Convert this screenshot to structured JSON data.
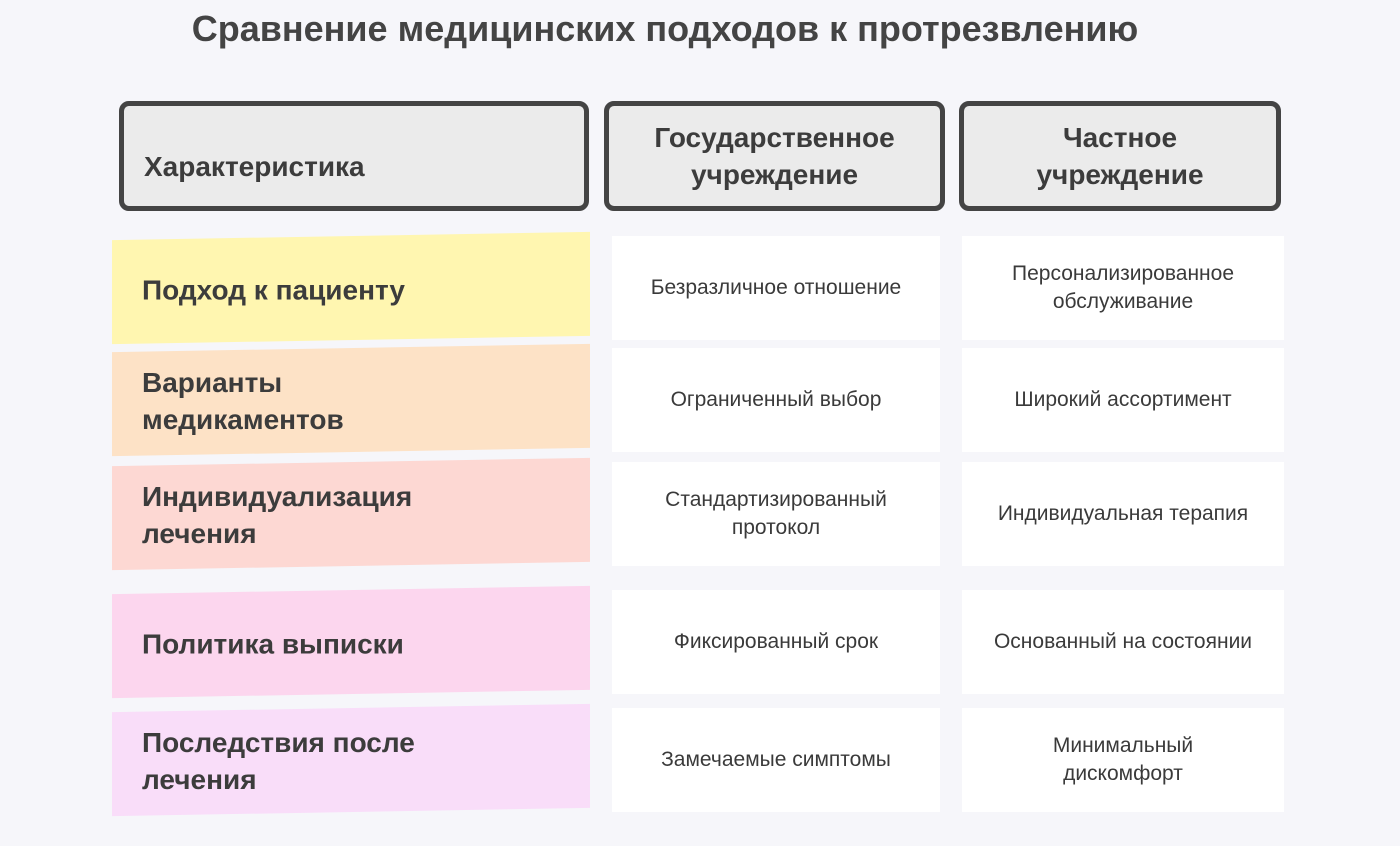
{
  "title": "Сравнение медицинских подходов к протрезвлению",
  "headers": [
    "Характеристика",
    "Государственное учреждение",
    "Частное учреждение"
  ],
  "rows": [
    {
      "label": "Подход к пациенту",
      "public": "Безразличное отношение",
      "private": "Персонализированное обслуживание",
      "color": "#fff6b0"
    },
    {
      "label": "Варианты медикаментов",
      "public": "Ограниченный выбор",
      "private": "Широкий ассортимент",
      "color": "#fde2c6"
    },
    {
      "label": "Индивидуализация лечения",
      "public": "Стандартизированный протокол",
      "private": "Индивидуальная терапия",
      "color": "#fdd8d3"
    },
    {
      "label": "Политика выписки",
      "public": "Фиксированный срок",
      "private": "Основанный на состоянии",
      "color": "#fcd6ee"
    },
    {
      "label": "Последствия после лечения",
      "public": "Замечаемые симптомы",
      "private": "Минимальный дискомфорт",
      "color": "#f9ddf9"
    }
  ]
}
